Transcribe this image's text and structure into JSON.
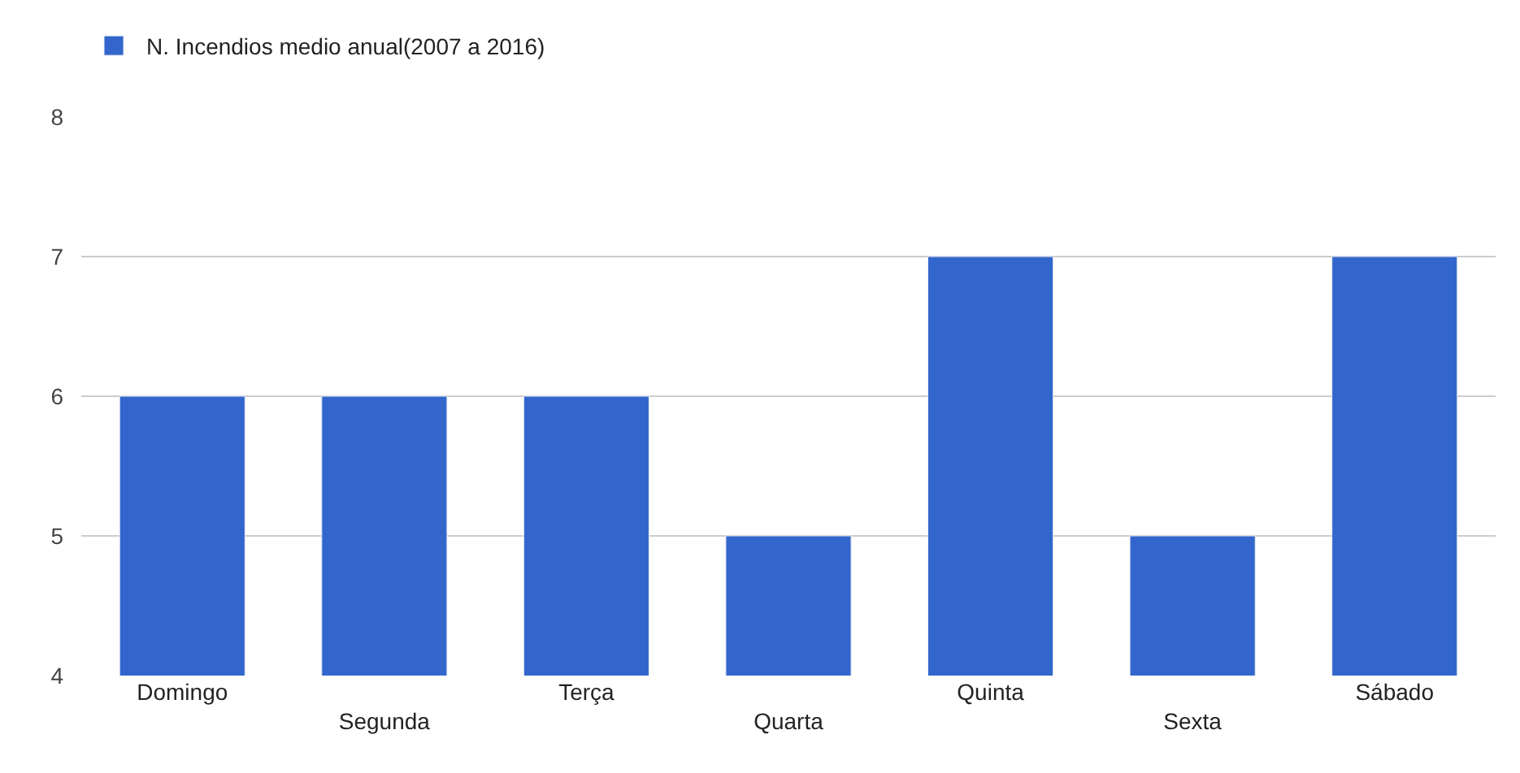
{
  "chart_data": {
    "type": "bar",
    "categories": [
      "Domingo",
      "Segunda",
      "Terça",
      "Quarta",
      "Quinta",
      "Sexta",
      "Sábado"
    ],
    "series": [
      {
        "name": "N. Incendios medio anual(2007 a 2016)",
        "color": "#3366cc",
        "values": [
          6,
          6,
          6,
          5,
          7,
          5,
          7
        ]
      }
    ],
    "ylim": [
      4,
      8
    ],
    "yticks": [
      4,
      5,
      6,
      7,
      8
    ],
    "grid": "y",
    "legend": "top left"
  }
}
